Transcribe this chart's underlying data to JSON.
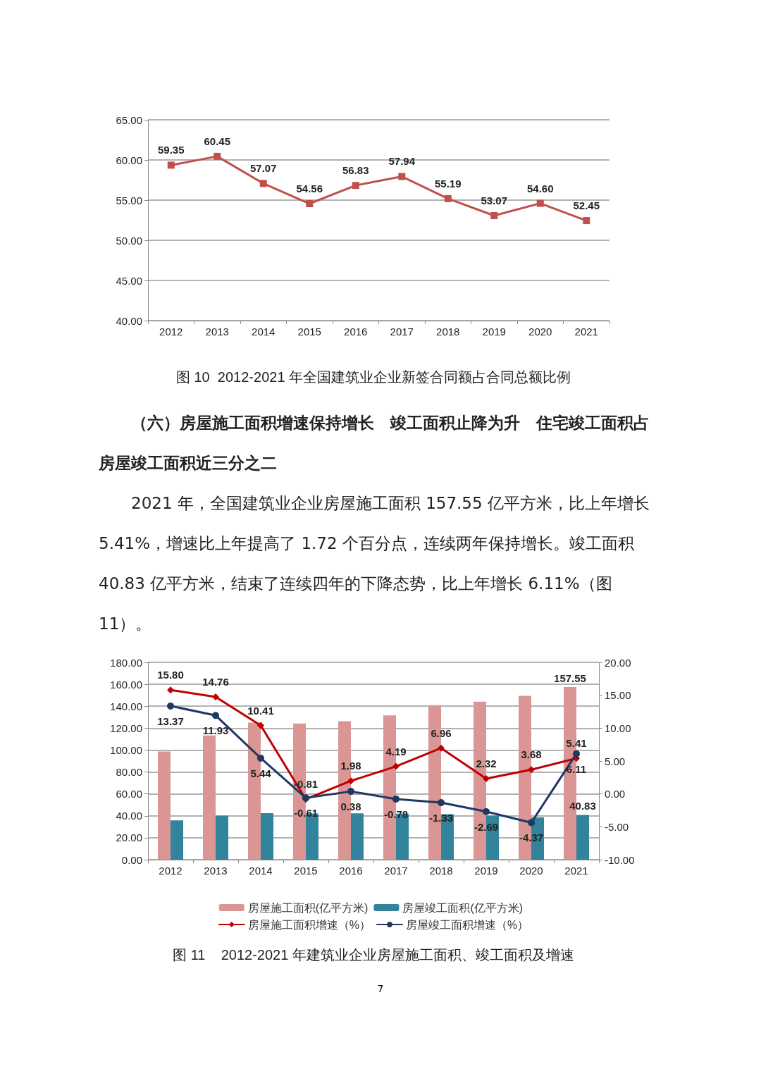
{
  "chart_data": [
    {
      "type": "line",
      "title": "图 10  2012-2021 年全国建筑业企业新签合同额占合同总额比例",
      "categories": [
        "2012",
        "2013",
        "2014",
        "2015",
        "2016",
        "2017",
        "2018",
        "2019",
        "2020",
        "2021"
      ],
      "series": [
        {
          "color": "#c0504d",
          "values": [
            59.35,
            60.45,
            57.07,
            54.56,
            56.83,
            57.94,
            55.19,
            53.07,
            54.6,
            52.45
          ],
          "value_labels": [
            "59.35",
            "60.45",
            "57.07",
            "54.56",
            "56.83",
            "57.94",
            "55.19",
            "53.07",
            "54.60",
            "52.45"
          ]
        }
      ],
      "ylim": [
        40,
        65
      ],
      "yticks": [
        {
          "value": 40,
          "label": "40.00"
        },
        {
          "value": 45,
          "label": "45.00"
        },
        {
          "value": 50,
          "label": "50.00"
        },
        {
          "value": 55,
          "label": "55.00"
        },
        {
          "value": 60,
          "label": "60.00"
        },
        {
          "value": 65,
          "label": "65.00"
        }
      ],
      "grid": "y",
      "marker": "square",
      "legend": false
    },
    {
      "type": "bar",
      "title": "图 11    2012-2021 年建筑业企业房屋施工面积、竣工面积及增速",
      "annotations": [
        "（六）房屋施工面积增速保持增长　竣工面积止降为升　住宅竣工面积占房屋竣工面积近三分之二",
        "2021 年，全国建筑业企业房屋施工面积 157.55 亿平方米，比上年增长 5.41%，增速比上年提高了 1.72 个百分点，连续两年保持增长。竣工面积 40.83 亿平方米，结束了连续四年的下降态势，比上年增长 6.11%（图 11）。",
        "7"
      ],
      "categories": [
        "2012",
        "2013",
        "2014",
        "2015",
        "2016",
        "2017",
        "2018",
        "2019",
        "2020",
        "2021"
      ],
      "series": [
        {
          "name": "房屋施工面积(亿平方米)",
          "type": "bar",
          "color": "#d99694",
          "values": [
            98.7,
            113.3,
            125.0,
            124.3,
            126.4,
            131.7,
            140.9,
            144.2,
            149.5,
            157.55
          ],
          "value_labels": [
            null,
            null,
            null,
            null,
            null,
            null,
            null,
            null,
            null,
            "157.55"
          ]
        },
        {
          "name": "房屋竣工面积(亿平方米)",
          "type": "bar",
          "color": "#31849b",
          "values": [
            35.9,
            40.1,
            42.4,
            42.1,
            42.2,
            41.9,
            41.4,
            40.2,
            38.5,
            40.83
          ],
          "value_labels": [
            null,
            null,
            null,
            null,
            null,
            null,
            null,
            null,
            null,
            "40.83"
          ]
        },
        {
          "name": "房屋施工面积增速（%）",
          "type": "line",
          "axis": "y2",
          "marker": "diamond",
          "color": "#c00000",
          "values": [
            15.8,
            14.76,
            10.41,
            -0.81,
            1.98,
            4.19,
            6.96,
            2.32,
            3.68,
            5.41
          ],
          "value_labels": [
            "15.80",
            "14.76",
            "10.41",
            "-0.81",
            "1.98",
            "4.19",
            "6.96",
            "2.32",
            "3.68",
            "5.41"
          ]
        },
        {
          "name": "房屋竣工面积增速（%）",
          "type": "line",
          "axis": "y2",
          "marker": "circle",
          "color": "#1f3864",
          "values": [
            13.37,
            11.93,
            5.44,
            -0.61,
            0.38,
            -0.78,
            -1.33,
            -2.69,
            -4.37,
            6.11
          ],
          "value_labels": [
            "13.37",
            "11.93",
            "5.44",
            "-0.61",
            "0.38",
            "-0.78",
            "-1.33",
            "-2.69",
            "-4.37",
            "6.11"
          ]
        }
      ],
      "ylim": [
        0,
        180
      ],
      "yticks": [
        {
          "value": 0,
          "label": "0.00"
        },
        {
          "value": 20,
          "label": "20.00"
        },
        {
          "value": 40,
          "label": "40.00"
        },
        {
          "value": 60,
          "label": "60.00"
        },
        {
          "value": 80,
          "label": "80.00"
        },
        {
          "value": 100,
          "label": "100.00"
        },
        {
          "value": 120,
          "label": "120.00"
        },
        {
          "value": 140,
          "label": "140.00"
        },
        {
          "value": 160,
          "label": "160.00"
        },
        {
          "value": 180,
          "label": "180.00"
        }
      ],
      "y2lim": [
        -10,
        20
      ],
      "y2ticks": [
        {
          "value": -10,
          "label": "-10.00"
        },
        {
          "value": -5,
          "label": "-5.00"
        },
        {
          "value": 0,
          "label": "0.00"
        },
        {
          "value": 5,
          "label": "5.00"
        },
        {
          "value": 10,
          "label": "10.00"
        },
        {
          "value": 15,
          "label": "15.00"
        },
        {
          "value": 20,
          "label": "20.00"
        }
      ],
      "grid": "y",
      "legend": "bottom"
    }
  ]
}
